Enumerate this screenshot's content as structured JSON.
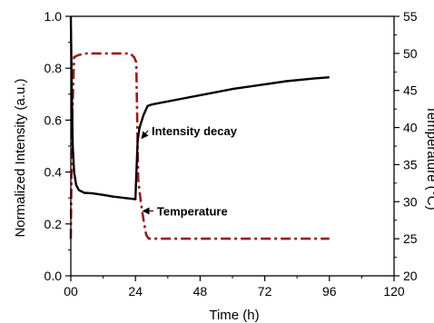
{
  "chart_data": {
    "type": "line",
    "title": "",
    "xlabel": "Time (h)",
    "ylabel": "Normalized Intensity (a.u.)",
    "y2label": "Temperature (°C)",
    "xlim": [
      0,
      120
    ],
    "ylim": [
      0.0,
      1.0
    ],
    "y2lim": [
      20,
      55
    ],
    "xticks": [
      0,
      24,
      48,
      72,
      96,
      120
    ],
    "xtick_labels": [
      "00",
      "24",
      "48",
      "72",
      "96",
      "120"
    ],
    "yticks": [
      0.0,
      0.2,
      0.4,
      0.6,
      0.8,
      1.0
    ],
    "ytick_labels": [
      "0.0",
      "0.2",
      "0.4",
      "0.6",
      "0.8",
      "1.0"
    ],
    "y2ticks": [
      20,
      25,
      30,
      35,
      40,
      45,
      50,
      55
    ],
    "y2tick_labels": [
      "20",
      "25",
      "30",
      "35",
      "40",
      "45",
      "50",
      "55"
    ],
    "grid": false,
    "series": [
      {
        "name": "Intensity decay",
        "axis": "left",
        "color": "#000000",
        "style": "solid",
        "x": [
          0,
          0.3,
          0.7,
          1.2,
          2,
          3,
          5,
          8,
          12,
          16,
          20,
          24,
          24.2,
          24.8,
          25.5,
          27,
          28.5,
          30,
          40,
          50,
          60,
          70,
          80,
          90,
          96
        ],
        "y": [
          1.0,
          0.75,
          0.5,
          0.4,
          0.35,
          0.33,
          0.32,
          0.318,
          0.312,
          0.305,
          0.3,
          0.295,
          0.36,
          0.52,
          0.57,
          0.62,
          0.655,
          0.66,
          0.68,
          0.7,
          0.72,
          0.735,
          0.75,
          0.76,
          0.765
        ]
      },
      {
        "name": "Temperature",
        "axis": "right",
        "color": "#9b1b1b",
        "style": "dash-dot",
        "x": [
          0,
          0.4,
          1.2,
          3,
          6,
          10,
          16,
          22,
          23.5,
          24.3,
          25,
          26,
          27,
          28,
          29,
          30,
          40,
          60,
          80,
          96
        ],
        "y": [
          25,
          40,
          49.5,
          49.8,
          50,
          50,
          50,
          50,
          49.5,
          48.8,
          33,
          30,
          27.5,
          25.5,
          25,
          25,
          25,
          25,
          25,
          25
        ]
      }
    ],
    "annotations": [
      {
        "text": "Intensity decay",
        "x": 30,
        "y": 0.56,
        "target_x": 26,
        "target_y": 0.53,
        "axis": "left"
      },
      {
        "text": "Temperature",
        "x": 32,
        "y": 0.25,
        "target_x": 26.5,
        "target_y": 0.25,
        "axis": "left"
      }
    ]
  }
}
